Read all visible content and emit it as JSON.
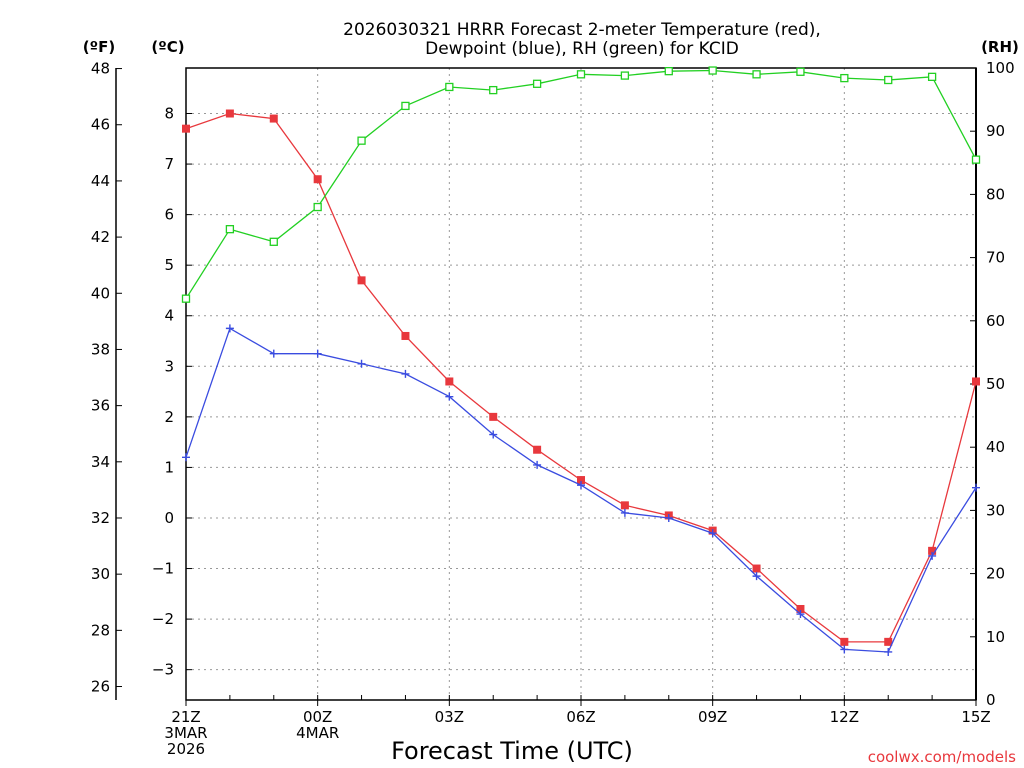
{
  "chart_data": {
    "type": "line",
    "title_lines": [
      "2026030321 HRRR Forecast 2-meter Temperature (red),",
      "Dewpoint (blue), RH (green) for KCID"
    ],
    "xlabel": "Forecast Time (UTC)",
    "credit": "coolwx.com/models",
    "axis_titles": {
      "left_f": "(ºF)",
      "left_c": "(ºC)",
      "right_rh": "(RH)"
    },
    "x_hours": [
      0,
      1,
      2,
      3,
      4,
      5,
      6,
      7,
      8,
      9,
      10,
      11,
      12,
      13,
      14,
      15,
      16,
      17,
      18
    ],
    "x_ticks": [
      {
        "hour": 0,
        "lines": [
          "21Z",
          "3MAR",
          "2026"
        ]
      },
      {
        "hour": 3,
        "lines": [
          "00Z",
          "4MAR"
        ]
      },
      {
        "hour": 6,
        "lines": [
          "03Z"
        ]
      },
      {
        "hour": 9,
        "lines": [
          "06Z"
        ]
      },
      {
        "hour": 12,
        "lines": [
          "09Z"
        ]
      },
      {
        "hour": 15,
        "lines": [
          "12Z"
        ]
      },
      {
        "hour": 18,
        "lines": [
          "15Z"
        ]
      }
    ],
    "xlim": [
      0,
      18
    ],
    "celsius_axis": {
      "ylim": [
        -3.6,
        8.9
      ],
      "ticks": [
        -3,
        -2,
        -1,
        0,
        1,
        2,
        3,
        4,
        5,
        6,
        7,
        8
      ],
      "tick_labels": [
        "−3",
        "−2",
        "−1",
        "0",
        "1",
        "2",
        "3",
        "4",
        "5",
        "6",
        "7",
        "8"
      ]
    },
    "fahrenheit_axis": {
      "ylim": [
        25.52,
        48.02
      ],
      "ticks": [
        26,
        28,
        30,
        32,
        34,
        36,
        38,
        40,
        42,
        44,
        46,
        48
      ]
    },
    "rh_axis": {
      "ylim": [
        0,
        100
      ],
      "ticks": [
        0,
        10,
        20,
        30,
        40,
        50,
        60,
        70,
        80,
        90,
        100
      ]
    },
    "series": [
      {
        "name": "Temperature",
        "units": "C",
        "color": "#e8383d",
        "marker": "filled-square",
        "values": [
          7.7,
          8.0,
          7.9,
          6.7,
          4.7,
          3.6,
          2.7,
          2.0,
          1.35,
          0.75,
          0.25,
          0.05,
          -0.25,
          -1.0,
          -1.8,
          -2.45,
          -2.45,
          -0.65,
          2.7
        ]
      },
      {
        "name": "Dewpoint",
        "units": "C",
        "color": "#3a4ce0",
        "marker": "plus",
        "values": [
          1.2,
          3.75,
          3.25,
          3.25,
          3.05,
          2.85,
          2.4,
          1.65,
          1.05,
          0.65,
          0.1,
          0.0,
          -0.3,
          -1.15,
          -1.9,
          -2.6,
          -2.65,
          -0.75,
          0.6
        ]
      },
      {
        "name": "RH",
        "units": "%",
        "color": "#22d022",
        "marker": "open-square",
        "values": [
          63.5,
          74.5,
          72.5,
          78.0,
          88.5,
          94.0,
          97.0,
          96.5,
          97.5,
          99.0,
          98.8,
          99.5,
          99.6,
          99.0,
          99.4,
          98.4,
          98.1,
          98.6,
          85.5
        ]
      }
    ],
    "grid": true
  }
}
